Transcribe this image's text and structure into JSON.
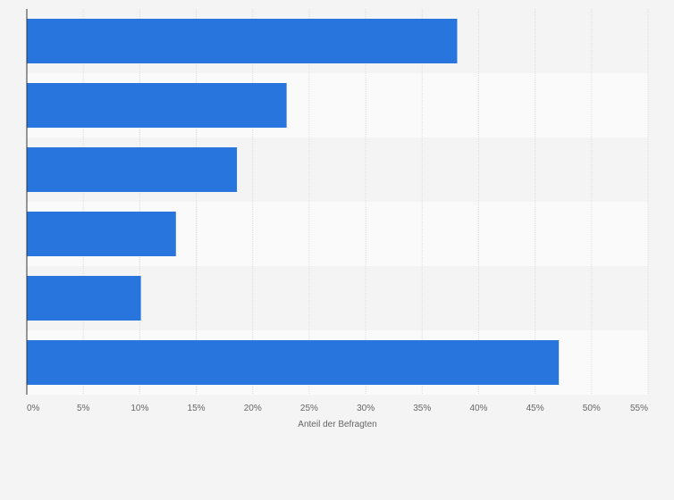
{
  "chart_data": {
    "type": "bar",
    "orientation": "horizontal",
    "categories": [
      "",
      "",
      "",
      "",
      "",
      ""
    ],
    "values": [
      38.1,
      23.0,
      18.6,
      13.2,
      10.1,
      47.1
    ],
    "unit": "%",
    "title": "",
    "xlabel": "Anteil der Befragten",
    "ylabel": "",
    "xlim": [
      0,
      55
    ],
    "xticks": [
      0,
      5,
      10,
      15,
      20,
      25,
      30,
      35,
      40,
      45,
      50,
      55
    ],
    "xtick_labels": [
      "0%",
      "5%",
      "10%",
      "15%",
      "20%",
      "25%",
      "30%",
      "35%",
      "40%",
      "45%",
      "50%",
      "55%"
    ],
    "grid": true,
    "legend": "none",
    "colors": {
      "bar": "#2876dd",
      "background": "#f4f4f4",
      "band_light": "#fafafa",
      "band_dark": "#f4f4f4",
      "grid": "#dcdcdc",
      "axis": "#333333",
      "text": "#666666"
    }
  }
}
